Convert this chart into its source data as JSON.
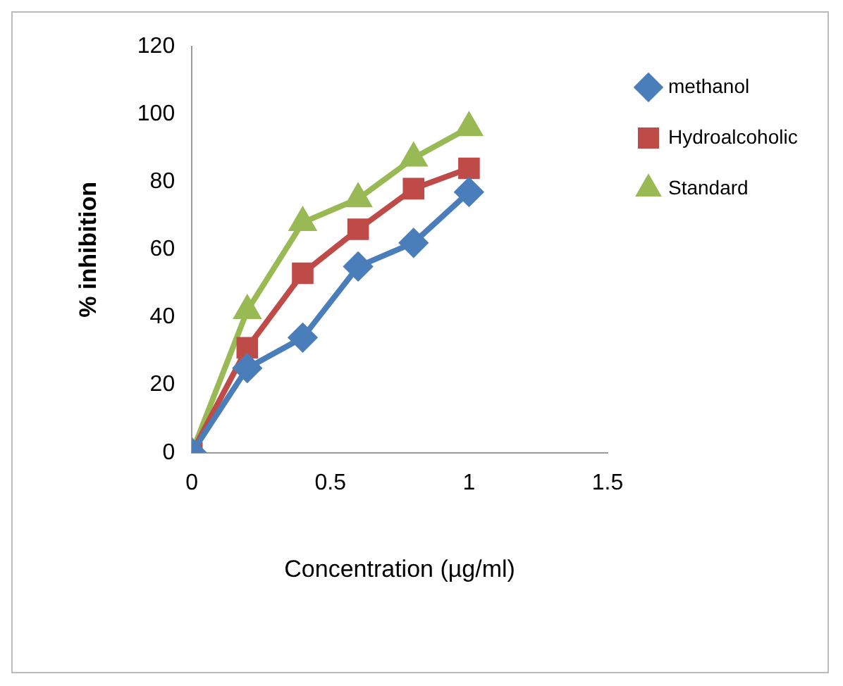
{
  "chart_data": {
    "type": "line",
    "xlabel": "Concentration (µg/ml)",
    "ylabel": "% inhibition",
    "x": [
      0,
      0.2,
      0.4,
      0.6,
      0.8,
      1
    ],
    "series": [
      {
        "name": "methanol",
        "color": "#4a7ebb",
        "values": [
          0,
          25,
          34,
          55,
          62,
          77
        ],
        "marker": "diamond"
      },
      {
        "name": "Hydroalcoholic",
        "color": "#be4b48",
        "values": [
          0,
          31,
          53,
          66,
          78,
          84
        ],
        "marker": "square"
      },
      {
        "name": "Standard",
        "color": "#98b954",
        "values": [
          0,
          42,
          68,
          75,
          87,
          96
        ],
        "marker": "triangle"
      }
    ],
    "xlim": [
      0,
      1.5
    ],
    "xticks": [
      0,
      0.5,
      1,
      1.5
    ],
    "ylim": [
      0,
      120
    ],
    "yticks": [
      0,
      20,
      40,
      60,
      80,
      100,
      120
    ],
    "grid": false,
    "legend": "right"
  }
}
